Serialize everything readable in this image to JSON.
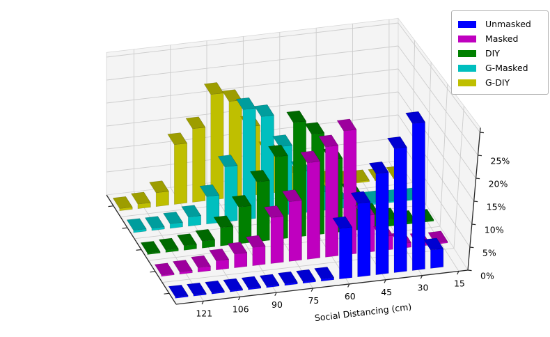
{
  "style": {
    "background": "#ffffff",
    "pane_fill": "#f4f4f4",
    "grid_color": "#cccccc",
    "pane_edge": "#d6d6d6",
    "spine_color": "#262626",
    "tick_text_color": "#000000"
  },
  "legend": {
    "items": [
      {
        "label": "Unmasked",
        "color": "#0000ff"
      },
      {
        "label": "Masked",
        "color": "#bf00bf"
      },
      {
        "label": "DIY",
        "color": "#008000"
      },
      {
        "label": "G-Masked",
        "color": "#00bfbf"
      },
      {
        "label": "G-DIY",
        "color": "#bfbf00"
      }
    ]
  },
  "chart_data": {
    "type": "bar3d",
    "title": "",
    "xlabel": "Social Distancing (cm)",
    "x_tick_labels": [
      "121",
      "106",
      "90",
      "75",
      "60",
      "45",
      "30",
      "15"
    ],
    "z_tick_labels": [
      "0%",
      "5%",
      "10%",
      "15%",
      "20%",
      "25%"
    ],
    "z_ticks_pct": [
      0,
      5,
      10,
      15,
      20,
      25
    ],
    "z_grid_pct": [
      5,
      10,
      15,
      20,
      25,
      30
    ],
    "zlim_pct": [
      0,
      31
    ],
    "n_bins": 16,
    "bin_centers_cm_approx": [
      129,
      121,
      114,
      106,
      99,
      91,
      84,
      76,
      69,
      61,
      53,
      46,
      38,
      30,
      23,
      15
    ],
    "series_front_to_back": [
      {
        "name": "Unmasked",
        "color": "#0000ff",
        "values": [
          0.3,
          0.3,
          0.3,
          0.3,
          0.3,
          0.3,
          0.4,
          0.4,
          0.5,
          11,
          16,
          22,
          27,
          32,
          4,
          0
        ]
      },
      {
        "name": "Masked",
        "color": "#bf00bf",
        "values": [
          0.3,
          0.5,
          1,
          2,
          3,
          4,
          10,
          13,
          21,
          24,
          27,
          8,
          3,
          1,
          0.5,
          0.3
        ]
      },
      {
        "name": "DIY",
        "color": "#008000",
        "values": [
          0.3,
          0.5,
          1,
          1.5,
          4,
          8,
          13,
          18,
          25,
          22,
          16,
          8,
          3,
          1.5,
          0.5,
          0.3
        ]
      },
      {
        "name": "G-Masked",
        "color": "#00bfbf",
        "values": [
          0.5,
          0.5,
          1,
          2,
          6,
          12,
          24,
          22,
          15,
          9,
          4,
          2,
          1,
          0.5,
          0.3,
          0.2
        ]
      },
      {
        "name": "G-DIY",
        "color": "#bfbf00",
        "values": [
          0.5,
          1,
          3,
          13,
          16,
          23,
          21,
          15,
          9,
          4,
          2,
          1,
          0.5,
          0.3,
          0.2,
          0.2
        ]
      }
    ]
  }
}
